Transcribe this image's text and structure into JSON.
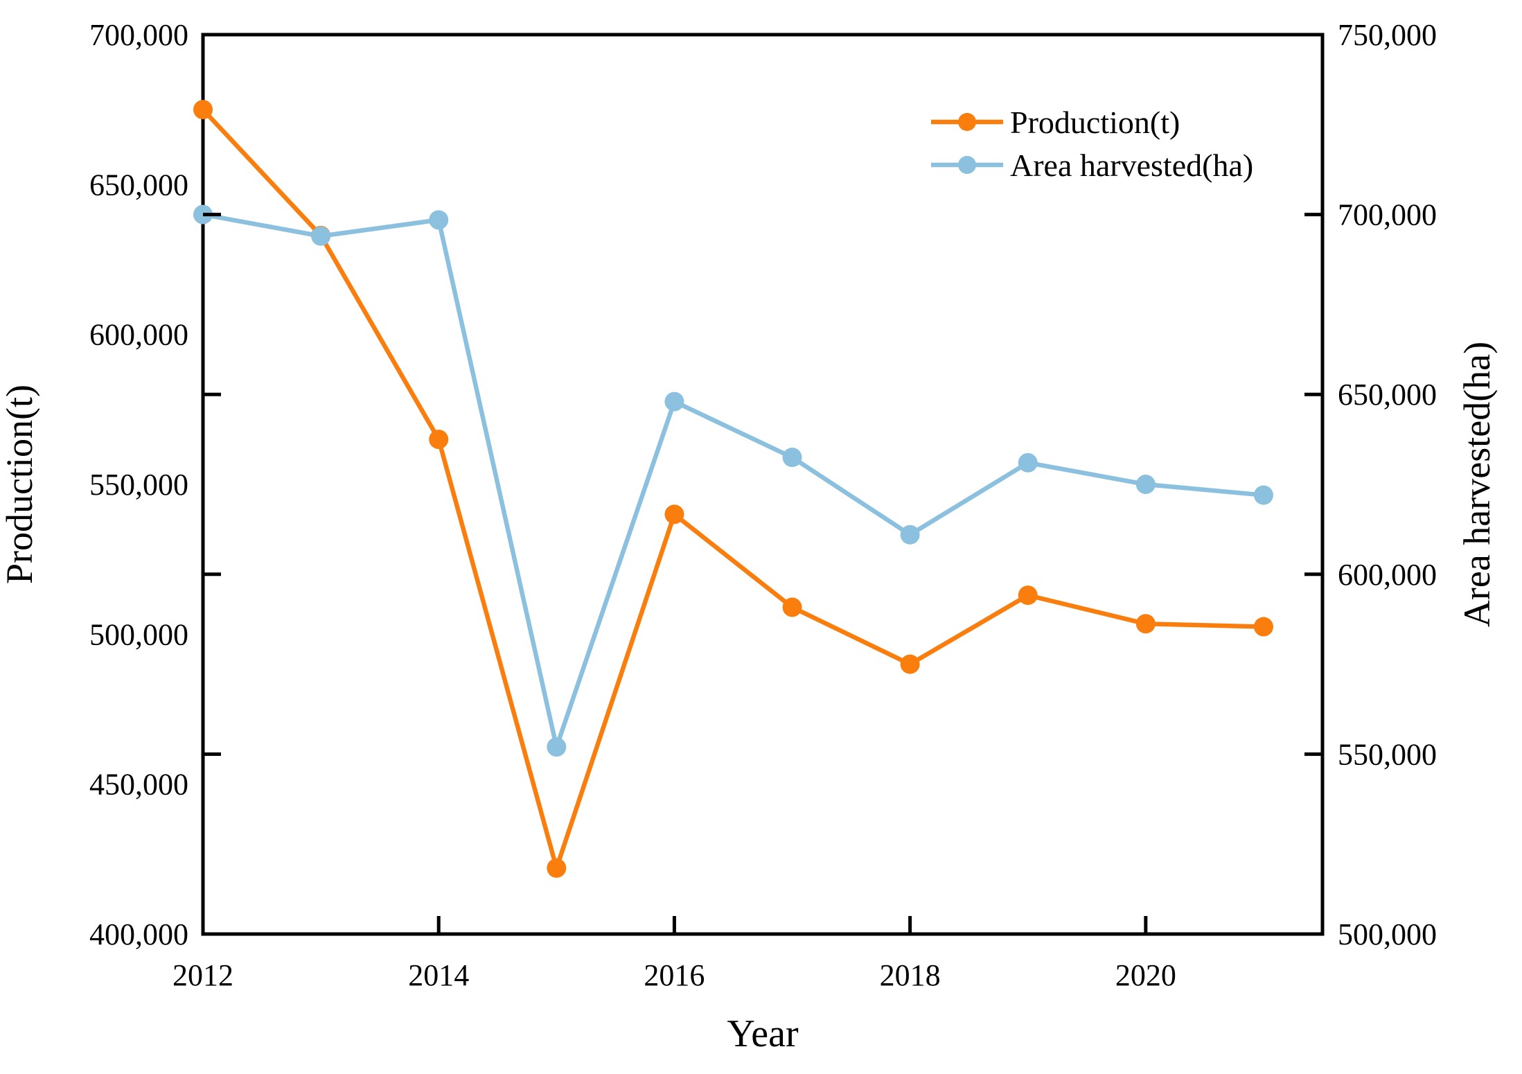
{
  "figure": {
    "background": "#ffffff",
    "axis_color": "#000000",
    "text_color": "#000000"
  },
  "chart_data": {
    "type": "line",
    "x": [
      2012,
      2013,
      2014,
      2015,
      2016,
      2017,
      2018,
      2019,
      2020,
      2021
    ],
    "series": [
      {
        "name": "Production(t)",
        "axis": "left",
        "color": "#FA7E0E",
        "marker": "circle",
        "values": [
          675000,
          633000,
          565000,
          422000,
          540000,
          509000,
          490000,
          513000,
          503500,
          502500
        ]
      },
      {
        "name": "Area harvested(ha)",
        "axis": "right",
        "color": "#8BC0DF",
        "marker": "circle",
        "values": [
          700000,
          694000,
          698500,
          552000,
          648000,
          632500,
          611000,
          631000,
          625000,
          622000
        ]
      }
    ],
    "xlabel": "Year",
    "ylabel_left": "Production(t)",
    "ylabel_right": "Area harvested(ha)",
    "xlim": [
      2012,
      2021.5
    ],
    "ylim_left": [
      400000,
      700000
    ],
    "ylim_right": [
      500000,
      750000
    ],
    "x_tick_values": [
      2012,
      2014,
      2016,
      2018,
      2020
    ],
    "x_tick_labels": [
      "2012",
      "2014",
      "2016",
      "2018",
      "2020"
    ],
    "y_tick_values_left": [
      700000,
      650000,
      600000,
      550000,
      500000,
      450000,
      400000
    ],
    "y_tick_labels_left": [
      "700,000",
      "650,000",
      "600,000",
      "550,000",
      "500,000",
      "450,000",
      "400,000"
    ],
    "y_tick_values_right": [
      750000,
      700000,
      650000,
      600000,
      550000,
      500000
    ],
    "y_tick_labels_right": [
      "750,000",
      "700,000",
      "650,000",
      "600,000",
      "550,000",
      "500,000"
    ],
    "grid": false,
    "legend_position": "upper right",
    "legend": [
      "Production(t)",
      "Area harvested(ha)"
    ]
  }
}
